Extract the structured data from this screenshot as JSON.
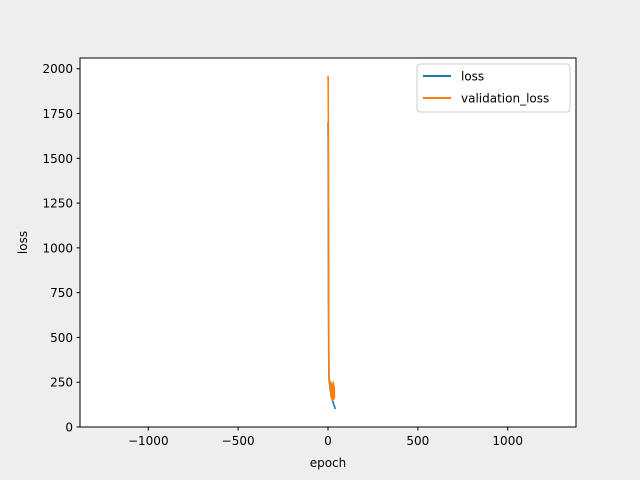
{
  "chart_data": {
    "type": "line",
    "title": "",
    "xlabel": "epoch",
    "ylabel": "loss",
    "xlim": [
      -1380,
      1380
    ],
    "ylim": [
      0,
      2060
    ],
    "xticks": [
      -1000,
      -500,
      0,
      500,
      1000
    ],
    "xtick_labels": [
      "−1000",
      "−500",
      "0",
      "500",
      "1000"
    ],
    "yticks": [
      0,
      250,
      500,
      750,
      1000,
      1250,
      1500,
      1750,
      2000
    ],
    "ytick_labels": [
      "0",
      "250",
      "500",
      "750",
      "1000",
      "1250",
      "1500",
      "1750",
      "2000"
    ],
    "grid": false,
    "legend": "top-right",
    "series": [
      {
        "name": "loss",
        "color": "#1f77b4",
        "x": [
          0,
          1,
          2,
          3,
          4,
          5,
          6,
          8,
          10,
          12,
          14,
          16,
          18,
          20,
          22,
          24,
          26,
          28,
          30,
          32,
          34,
          36,
          38,
          40
        ],
        "y": [
          1700,
          1590,
          1180,
          700,
          420,
          300,
          265,
          245,
          230,
          215,
          200,
          190,
          180,
          170,
          160,
          150,
          145,
          140,
          130,
          125,
          120,
          115,
          110,
          100
        ]
      },
      {
        "name": "validation_loss",
        "color": "#ff7f0e",
        "x": [
          0,
          1,
          2,
          3,
          4,
          5,
          6,
          8,
          10,
          12,
          14,
          16,
          18,
          20,
          22,
          24,
          26,
          28,
          30,
          32,
          34,
          36
        ],
        "y": [
          1960,
          1930,
          1700,
          1100,
          600,
          340,
          260,
          250,
          240,
          220,
          255,
          170,
          245,
          200,
          240,
          150,
          235,
          180,
          250,
          155,
          230,
          160
        ]
      }
    ]
  }
}
